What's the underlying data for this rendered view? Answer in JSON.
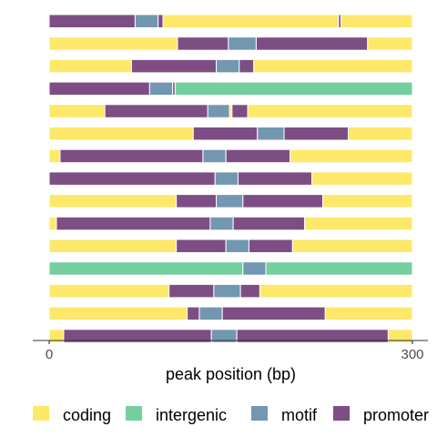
{
  "chart_data": {
    "type": "bar",
    "orientation": "horizontal",
    "stacked": true,
    "xlabel": "peak position (bp)",
    "ylabel": "",
    "xlim": [
      0,
      300
    ],
    "xticks": [
      0,
      300
    ],
    "grid": false,
    "legend_position": "bottom",
    "categories": [
      "coding",
      "intergenic",
      "motif",
      "promoter"
    ],
    "colors": {
      "coding": "#FDE869",
      "intergenic": "#73D09E",
      "motif": "#7397B0",
      "promoter": "#7D4E84"
    },
    "rows": [
      [
        [
          "promoter",
          0,
          71
        ],
        [
          "motif",
          71,
          90
        ],
        [
          "promoter",
          90,
          94
        ],
        [
          "coding",
          94,
          239
        ],
        [
          "promoter",
          239,
          241
        ],
        [
          "coding",
          241,
          300
        ]
      ],
      [
        [
          "coding",
          0,
          106
        ],
        [
          "promoter",
          106,
          148
        ],
        [
          "motif",
          148,
          171
        ],
        [
          "promoter",
          171,
          263
        ],
        [
          "coding",
          263,
          300
        ]
      ],
      [
        [
          "coding",
          0,
          68
        ],
        [
          "promoter",
          68,
          138
        ],
        [
          "motif",
          138,
          157
        ],
        [
          "promoter",
          157,
          169
        ],
        [
          "coding",
          169,
          300
        ]
      ],
      [
        [
          "promoter",
          0,
          83
        ],
        [
          "motif",
          83,
          102
        ],
        [
          "promoter",
          102,
          104
        ],
        [
          "intergenic",
          104,
          300
        ]
      ],
      [
        [
          "coding",
          0,
          46
        ],
        [
          "promoter",
          46,
          131
        ],
        [
          "motif",
          131,
          149
        ],
        [
          "coding",
          149,
          151
        ],
        [
          "promoter",
          151,
          164
        ],
        [
          "coding",
          164,
          300
        ]
      ],
      [
        [
          "coding",
          0,
          119
        ],
        [
          "promoter",
          119,
          172
        ],
        [
          "motif",
          172,
          194
        ],
        [
          "promoter",
          194,
          247
        ],
        [
          "coding",
          247,
          300
        ]
      ],
      [
        [
          "coding",
          0,
          9
        ],
        [
          "promoter",
          9,
          127
        ],
        [
          "motif",
          127,
          146
        ],
        [
          "promoter",
          146,
          199
        ],
        [
          "coding",
          199,
          300
        ]
      ],
      [
        [
          "promoter",
          0,
          137
        ],
        [
          "motif",
          137,
          156
        ],
        [
          "promoter",
          156,
          217
        ],
        [
          "coding",
          217,
          300
        ]
      ],
      [
        [
          "coding",
          0,
          105
        ],
        [
          "promoter",
          105,
          138
        ],
        [
          "motif",
          138,
          160
        ],
        [
          "promoter",
          160,
          226
        ],
        [
          "coding",
          226,
          300
        ]
      ],
      [
        [
          "coding",
          0,
          6
        ],
        [
          "promoter",
          6,
          133
        ],
        [
          "motif",
          133,
          152
        ],
        [
          "promoter",
          152,
          211
        ],
        [
          "coding",
          211,
          300
        ]
      ],
      [
        [
          "coding",
          0,
          105
        ],
        [
          "promoter",
          105,
          146
        ],
        [
          "motif",
          146,
          165
        ],
        [
          "promoter",
          165,
          201
        ],
        [
          "coding",
          201,
          300
        ]
      ],
      [
        [
          "intergenic",
          0,
          160
        ],
        [
          "motif",
          160,
          179
        ],
        [
          "intergenic",
          179,
          300
        ]
      ],
      [
        [
          "coding",
          0,
          99
        ],
        [
          "promoter",
          99,
          136
        ],
        [
          "motif",
          136,
          158
        ],
        [
          "promoter",
          158,
          174
        ],
        [
          "coding",
          174,
          300
        ]
      ],
      [
        [
          "coding",
          0,
          114
        ],
        [
          "promoter",
          114,
          124
        ],
        [
          "motif",
          124,
          143
        ],
        [
          "promoter",
          143,
          228
        ],
        [
          "coding",
          228,
          300
        ]
      ],
      [
        [
          "coding",
          0,
          12
        ],
        [
          "promoter",
          12,
          134
        ],
        [
          "motif",
          134,
          155
        ],
        [
          "promoter",
          155,
          280
        ],
        [
          "coding",
          280,
          300
        ]
      ]
    ]
  }
}
